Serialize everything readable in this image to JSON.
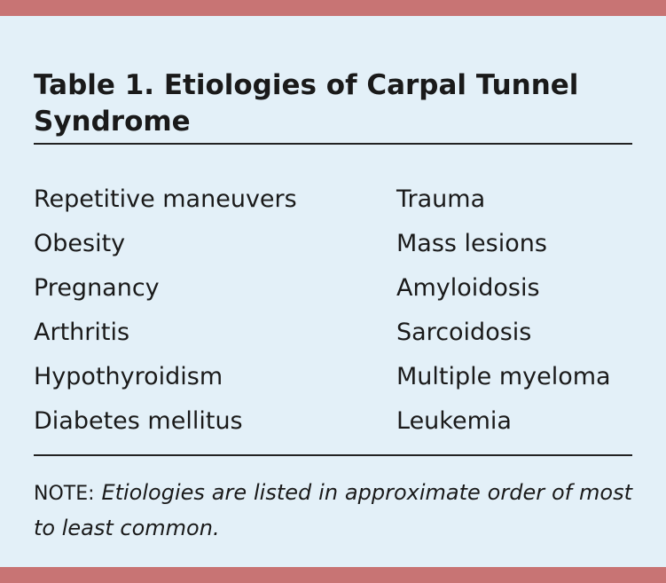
{
  "colors": {
    "background": "#e3f0f8",
    "accent_bar": "#c87474"
  },
  "title": "Table 1. Etiologies of Carpal Tunnel Syndrome",
  "column1": [
    "Repetitive maneuvers",
    "Obesity",
    "Pregnancy",
    "Arthritis",
    "Hypothyroidism",
    "Diabetes mellitus"
  ],
  "column2": [
    "Trauma",
    "Mass lesions",
    "Amyloidosis",
    "Sarcoidosis",
    "Multiple myeloma",
    "Leukemia"
  ],
  "note": {
    "label": "NOTE:",
    "text": "Etiologies are listed in approximate order of most to least common."
  }
}
